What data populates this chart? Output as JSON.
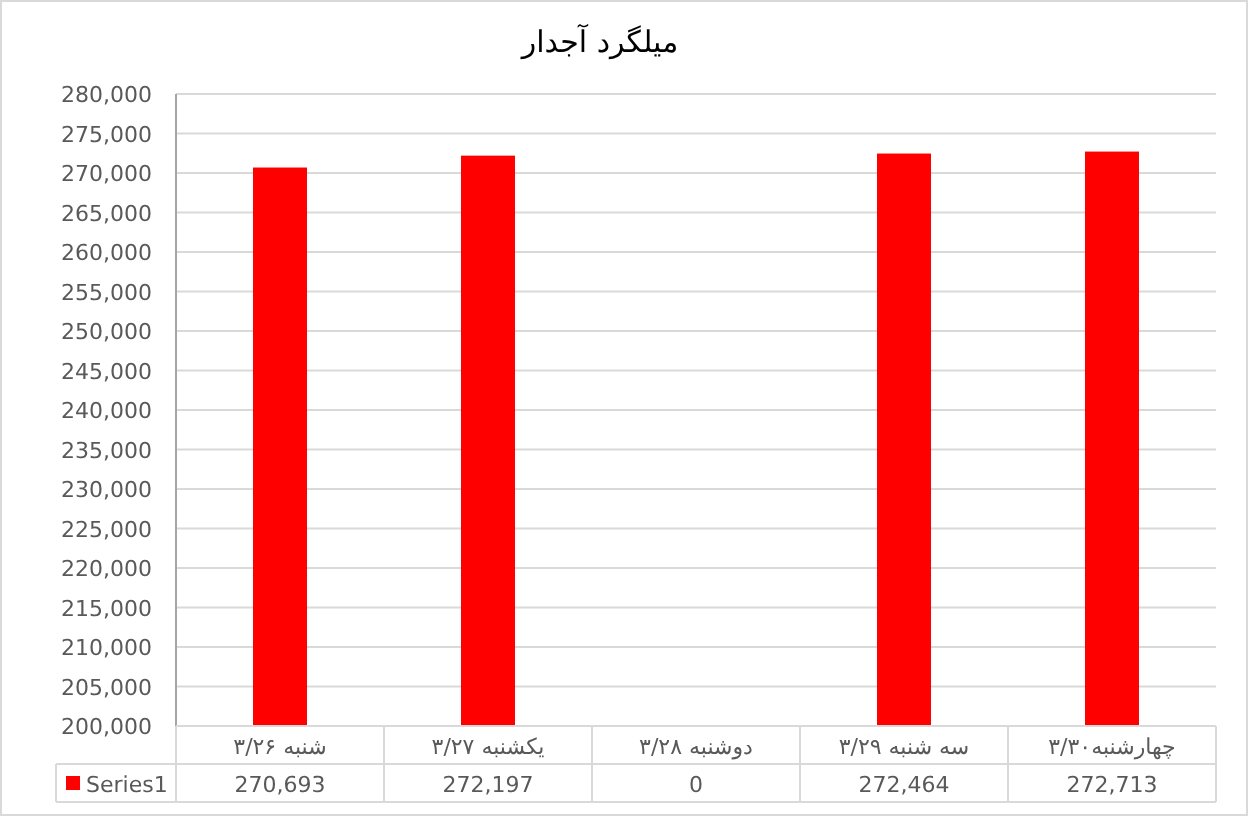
{
  "chart_data": {
    "type": "bar",
    "title": "میلگرد آجدار",
    "categories": [
      "شنبه ۳/۲۶",
      "یکشنبه ۳/۲۷",
      "دوشنبه ۳/۲۸",
      "سه شنبه ۳/۲۹",
      "چهارشنبه۳/۳۰"
    ],
    "series": [
      {
        "name": "Series1",
        "color": "#ff0000",
        "values": [
          270693,
          272197,
          null,
          272464,
          272713
        ],
        "value_labels": [
          "270,693",
          "272,197",
          "0",
          "272,464",
          "272,713"
        ]
      }
    ],
    "ylim": [
      200000,
      280000
    ],
    "yticks": [
      {
        "value": 200000,
        "label": "200,000"
      },
      {
        "value": 205000,
        "label": "205,000"
      },
      {
        "value": 210000,
        "label": "210,000"
      },
      {
        "value": 215000,
        "label": "215,000"
      },
      {
        "value": 220000,
        "label": "220,000"
      },
      {
        "value": 225000,
        "label": "225,000"
      },
      {
        "value": 230000,
        "label": "230,000"
      },
      {
        "value": 235000,
        "label": "235,000"
      },
      {
        "value": 240000,
        "label": "240,000"
      },
      {
        "value": 245000,
        "label": "245,000"
      },
      {
        "value": 250000,
        "label": "250,000"
      },
      {
        "value": 255000,
        "label": "255,000"
      },
      {
        "value": 260000,
        "label": "260,000"
      },
      {
        "value": 265000,
        "label": "265,000"
      },
      {
        "value": 270000,
        "label": "270,000"
      },
      {
        "value": 275000,
        "label": "275,000"
      },
      {
        "value": 280000,
        "label": "280,000"
      }
    ],
    "grid": "y",
    "legend": "bottom"
  }
}
